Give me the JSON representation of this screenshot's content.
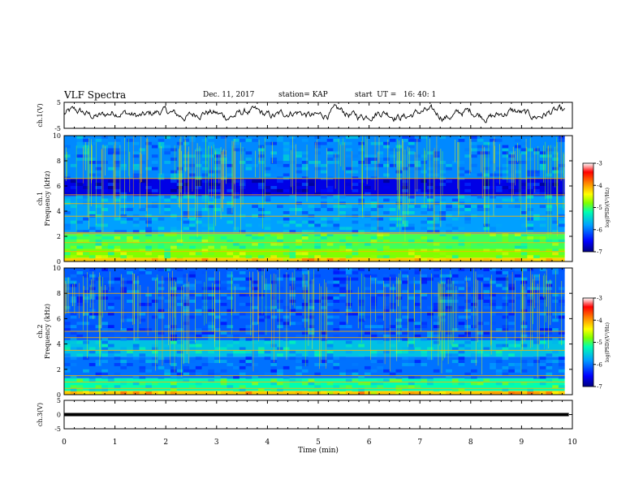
{
  "header": {
    "title": "VLF Spectra",
    "date": "Dec. 11, 2017",
    "station": "station= KAP",
    "start": "start  UT =   16: 40: 1"
  },
  "chart_data": [
    {
      "type": "line",
      "name": "ch1-waveform",
      "ylabel": "ch.1(V)",
      "ylim": [
        -5,
        5
      ],
      "yticks": [
        "5",
        "-5"
      ],
      "x_range_min": [
        0,
        9.85
      ],
      "approx_mean_v": 0.5,
      "approx_amplitude_v": 3.5
    },
    {
      "type": "heatmap",
      "name": "ch1-spectrogram",
      "ylabel": "ch.1\nFrequency (kHz)",
      "ylim_khz": [
        0,
        10
      ],
      "yticks": [
        "0",
        "2",
        "4",
        "6",
        "8",
        "10"
      ],
      "x_range_min": [
        0,
        9.85
      ],
      "bands": [
        {
          "from_khz": 0.0,
          "to_khz": 0.3,
          "log_psd": -4.2
        },
        {
          "from_khz": 0.3,
          "to_khz": 1.0,
          "log_psd": -4.8
        },
        {
          "from_khz": 1.0,
          "to_khz": 2.2,
          "log_psd": -5.0
        },
        {
          "from_khz": 2.2,
          "to_khz": 5.2,
          "log_psd": -5.8
        },
        {
          "from_khz": 5.2,
          "to_khz": 6.6,
          "log_psd": -6.6
        },
        {
          "from_khz": 6.6,
          "to_khz": 10.0,
          "log_psd": -5.9
        }
      ],
      "lines_khz": [
        0.8,
        1.5,
        2.2,
        2.3,
        3.6,
        4.6,
        5.3,
        6.6
      ]
    },
    {
      "type": "heatmap",
      "name": "ch2-spectrogram",
      "ylabel": "ch.2\nFrequency (kHz)",
      "ylim_khz": [
        0,
        10
      ],
      "yticks": [
        "0",
        "2",
        "4",
        "6",
        "8",
        "10"
      ],
      "x_range_min": [
        0,
        9.85
      ],
      "bands": [
        {
          "from_khz": 0.0,
          "to_khz": 0.3,
          "log_psd": -4.2
        },
        {
          "from_khz": 0.3,
          "to_khz": 1.3,
          "log_psd": -5.2
        },
        {
          "from_khz": 1.3,
          "to_khz": 3.0,
          "log_psd": -6.0
        },
        {
          "from_khz": 3.0,
          "to_khz": 4.3,
          "log_psd": -5.6
        },
        {
          "from_khz": 4.3,
          "to_khz": 10.0,
          "log_psd": -6.1
        }
      ],
      "lines_khz": [
        0.5,
        1.0,
        1.5,
        3.5,
        4.5,
        5.0,
        6.5,
        8.0
      ]
    },
    {
      "type": "line",
      "name": "ch3-waveform",
      "ylabel": "ch.3(V)",
      "ylim": [
        -5,
        5
      ],
      "yticks": [
        "5",
        "0",
        "-5"
      ],
      "x_range_min": [
        0,
        9.85
      ],
      "approx_value_v": 0
    }
  ],
  "colorbar": {
    "label": "log(PSD)(V²/Hz)",
    "range": [
      -7,
      -3
    ],
    "ticks": [
      "-3",
      "-4",
      "-5",
      "-6",
      "-7"
    ],
    "colors": [
      "#000080",
      "#0000ff",
      "#00a0ff",
      "#00ffb0",
      "#80ff00",
      "#ffff00",
      "#ff8000",
      "#ff0000",
      "#ffffff"
    ]
  },
  "xaxis": {
    "label": "Time (min)",
    "range": [
      0,
      10
    ],
    "ticks": [
      "0",
      "1",
      "2",
      "3",
      "4",
      "5",
      "6",
      "7",
      "8",
      "9",
      "10"
    ]
  }
}
